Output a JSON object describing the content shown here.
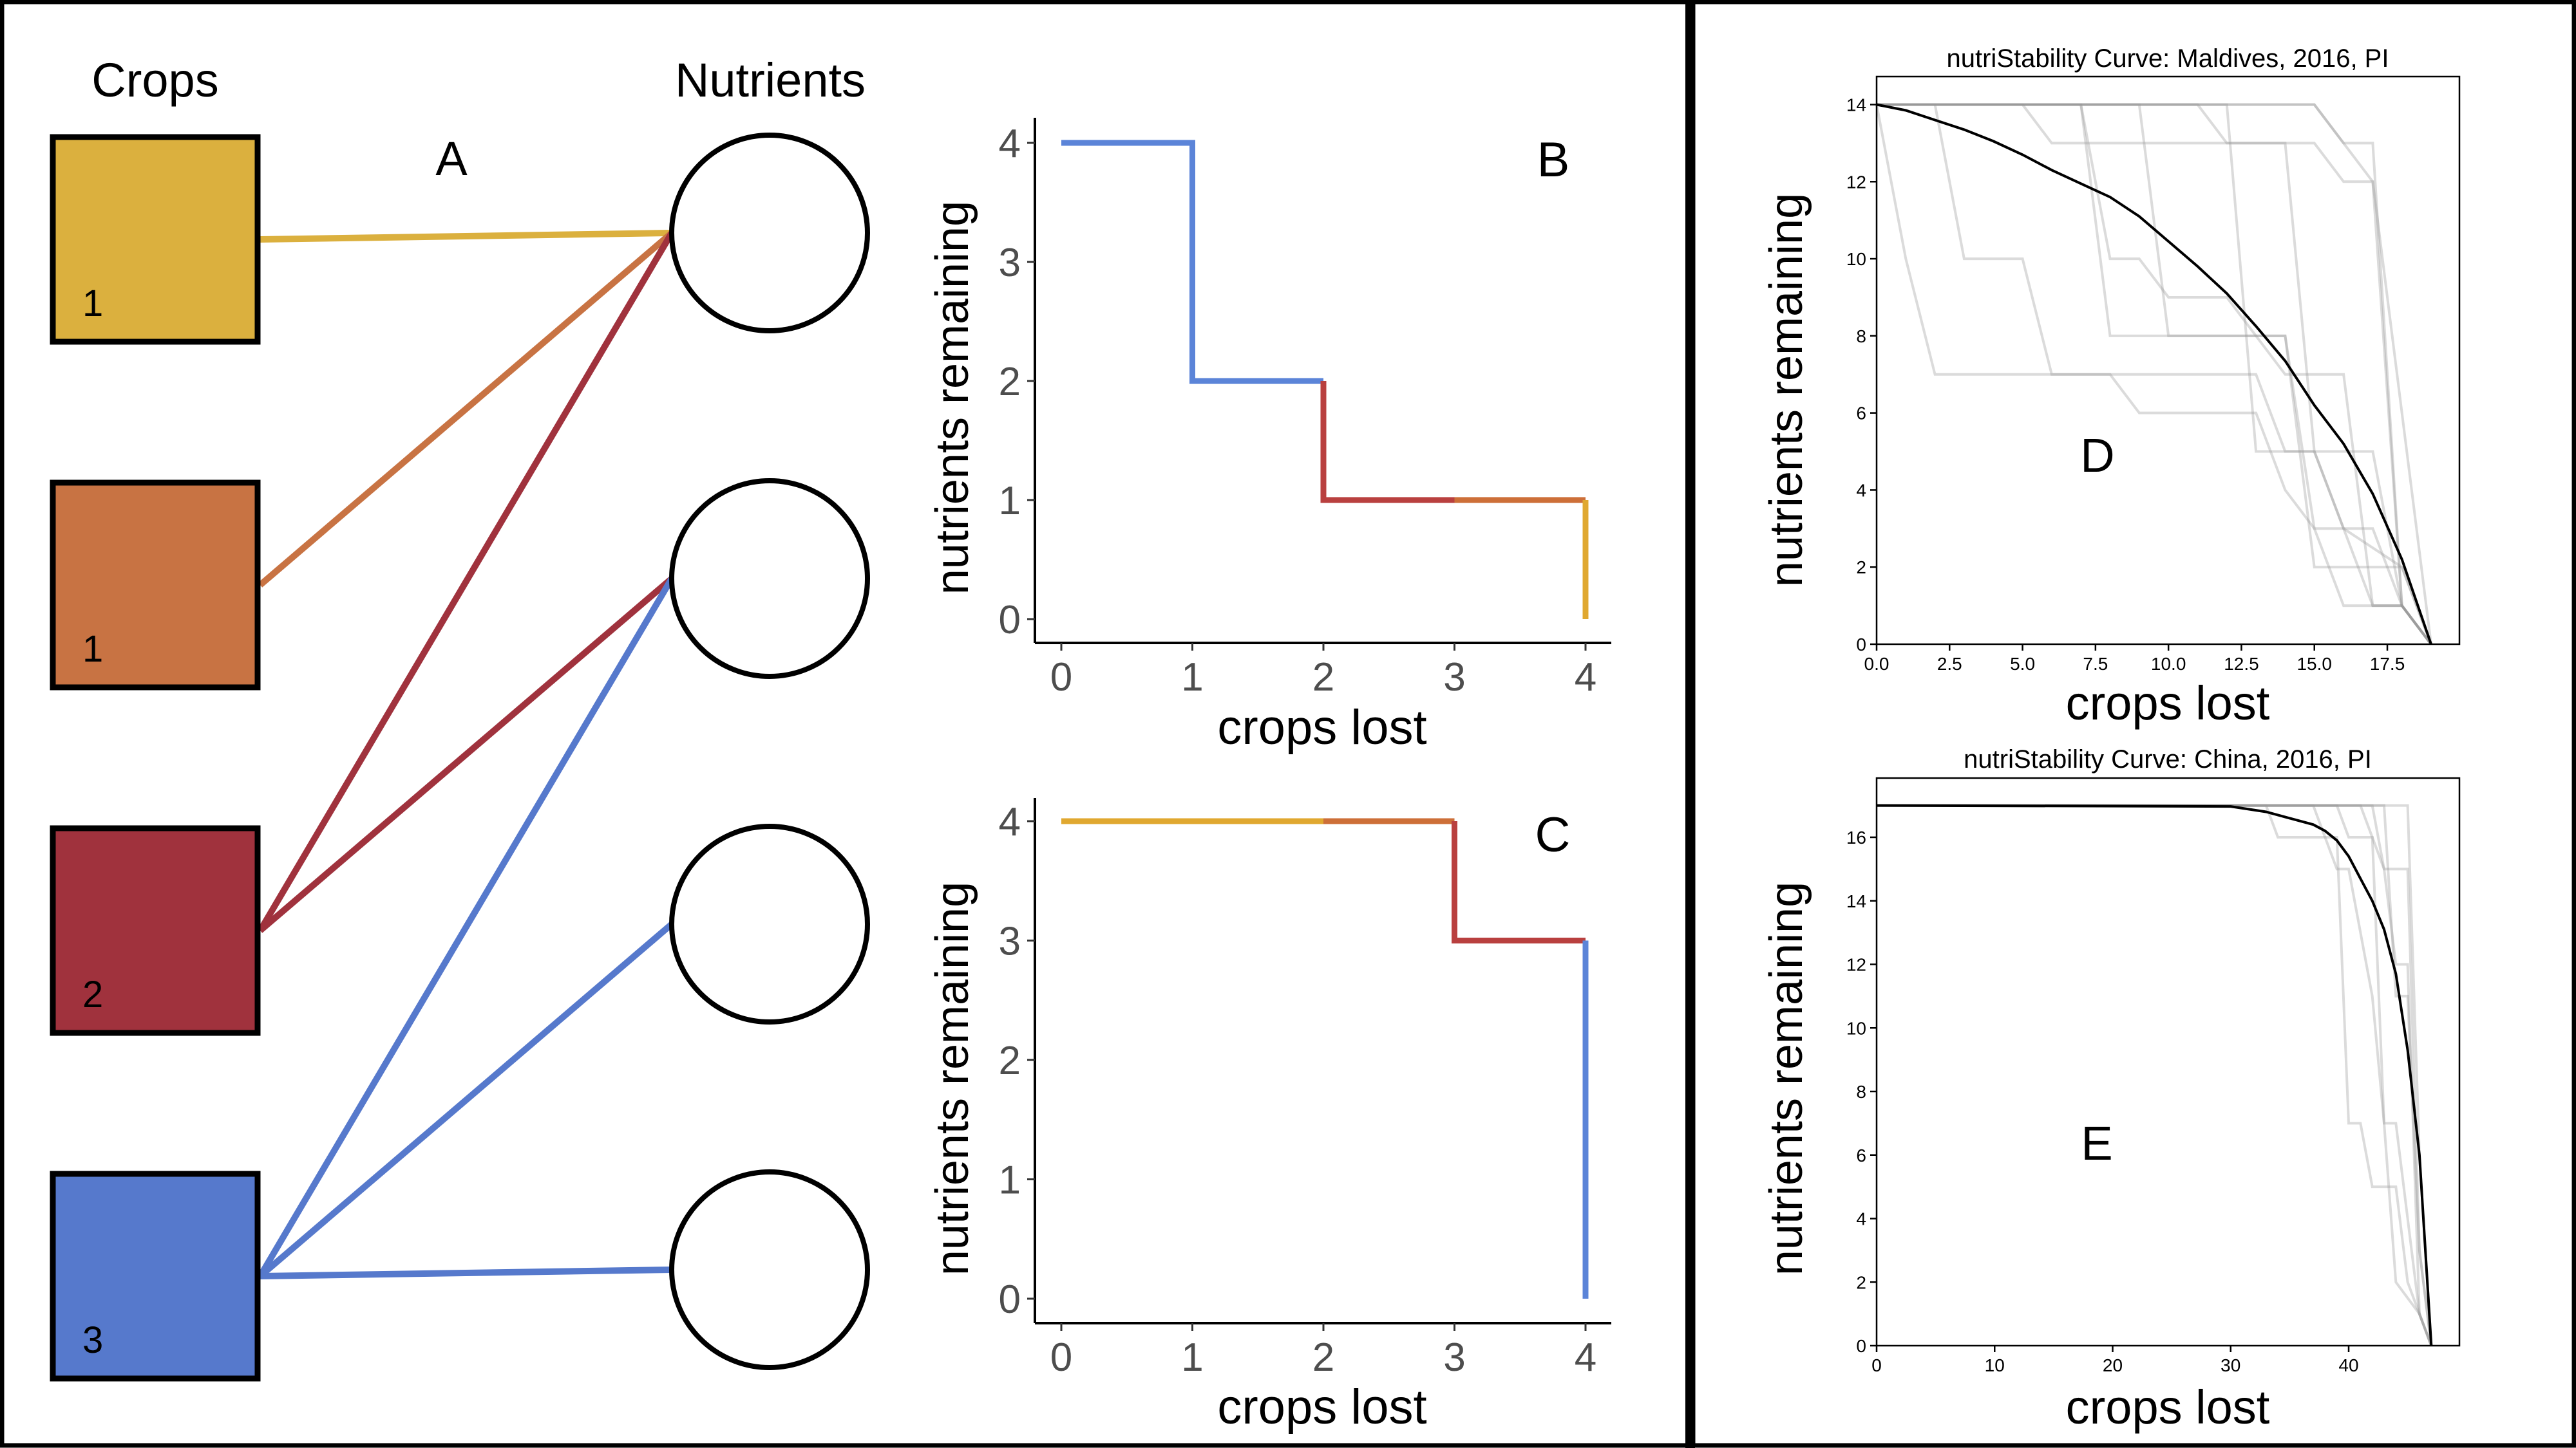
{
  "diagram": {
    "panel_label": "A",
    "crops_heading": "Crops",
    "nutrients_heading": "Nutrients",
    "crops": [
      {
        "label": "1",
        "color": "#DBB03E"
      },
      {
        "label": "1",
        "color": "#C87343"
      },
      {
        "label": "2",
        "color": "#A0323D"
      },
      {
        "label": "3",
        "color": "#5679CC"
      }
    ],
    "nutrient_count": 4,
    "edges": [
      {
        "crop": 0,
        "nutrient": 0
      },
      {
        "crop": 1,
        "nutrient": 0
      },
      {
        "crop": 2,
        "nutrient": 0
      },
      {
        "crop": 2,
        "nutrient": 1
      },
      {
        "crop": 3,
        "nutrient": 1
      },
      {
        "crop": 3,
        "nutrient": 2
      },
      {
        "crop": 3,
        "nutrient": 3
      }
    ]
  },
  "chart_data": [
    {
      "id": "B",
      "type": "line",
      "panel_label": "B",
      "title": "",
      "xlabel": "crops lost",
      "ylabel": "nutrients remaining",
      "xlim": [
        0,
        4
      ],
      "ylim": [
        0,
        4
      ],
      "xticks": [
        "0",
        "1",
        "2",
        "3",
        "4"
      ],
      "yticks": [
        "0",
        "1",
        "2",
        "3",
        "4"
      ],
      "series": [
        {
          "name": "crop 3",
          "color": "#5B84D8",
          "points": [
            [
              0,
              4
            ],
            [
              1,
              4
            ],
            [
              1,
              2
            ],
            [
              2,
              2
            ]
          ]
        },
        {
          "name": "crop 2",
          "color": "#B9403F",
          "points": [
            [
              2,
              2
            ],
            [
              2,
              1
            ],
            [
              3,
              1
            ]
          ]
        },
        {
          "name": "crop 1 (orange)",
          "color": "#CD6F38",
          "points": [
            [
              3,
              1
            ],
            [
              4,
              1
            ]
          ]
        },
        {
          "name": "crop 1 (yellow)",
          "color": "#E0A830",
          "points": [
            [
              4,
              1
            ],
            [
              4,
              0
            ]
          ]
        }
      ]
    },
    {
      "id": "C",
      "type": "line",
      "panel_label": "C",
      "title": "",
      "xlabel": "crops lost",
      "ylabel": "nutrients remaining",
      "xlim": [
        0,
        4
      ],
      "ylim": [
        0,
        4
      ],
      "xticks": [
        "0",
        "1",
        "2",
        "3",
        "4"
      ],
      "yticks": [
        "0",
        "1",
        "2",
        "3",
        "4"
      ],
      "series": [
        {
          "name": "crop 1 (yellow)",
          "color": "#E0A830",
          "points": [
            [
              0,
              4
            ],
            [
              2,
              4
            ]
          ]
        },
        {
          "name": "crop 1 (orange)",
          "color": "#CD6F38",
          "points": [
            [
              2,
              4
            ],
            [
              3,
              4
            ]
          ]
        },
        {
          "name": "crop 2",
          "color": "#B9403F",
          "points": [
            [
              3,
              4
            ],
            [
              3,
              3
            ],
            [
              4,
              3
            ]
          ]
        },
        {
          "name": "crop 3",
          "color": "#5B84D8",
          "points": [
            [
              4,
              3
            ],
            [
              4,
              0
            ]
          ]
        }
      ]
    },
    {
      "id": "D",
      "type": "line",
      "panel_label": "D",
      "title": "nutriStability Curve: Maldives, 2016, PI",
      "xlabel": "crops lost",
      "ylabel": "nutrients remaining",
      "xlim": [
        0,
        19.5
      ],
      "ylim": [
        0,
        14.6
      ],
      "xticks": [
        "0.0",
        "2.5",
        "5.0",
        "7.5",
        "10.0",
        "12.5",
        "15.0",
        "17.5"
      ],
      "xtick_values": [
        0,
        2.5,
        5,
        7.5,
        10,
        12.5,
        15,
        17.5
      ],
      "yticks": [
        "0",
        "2",
        "4",
        "6",
        "8",
        "10",
        "12",
        "14"
      ],
      "ytick_values": [
        0,
        2,
        4,
        6,
        8,
        10,
        12,
        14
      ],
      "mean": {
        "name": "mean",
        "color": "#000000",
        "points": [
          [
            0,
            14
          ],
          [
            1,
            13.85
          ],
          [
            2,
            13.6
          ],
          [
            3,
            13.35
          ],
          [
            4,
            13.05
          ],
          [
            5,
            12.7
          ],
          [
            6,
            12.3
          ],
          [
            7,
            11.95
          ],
          [
            8,
            11.6
          ],
          [
            9,
            11.1
          ],
          [
            10,
            10.45
          ],
          [
            11,
            9.8
          ],
          [
            12,
            9.1
          ],
          [
            13,
            8.25
          ],
          [
            14,
            7.35
          ],
          [
            15,
            6.2
          ],
          [
            16,
            5.2
          ],
          [
            17,
            3.9
          ],
          [
            18,
            2.2
          ],
          [
            19,
            0
          ]
        ]
      },
      "trials": [
        [
          [
            0,
            14
          ],
          [
            1,
            10
          ],
          [
            2,
            7
          ],
          [
            13,
            7
          ],
          [
            14,
            5
          ],
          [
            15,
            5
          ],
          [
            16,
            3
          ],
          [
            17,
            1
          ],
          [
            18,
            1
          ],
          [
            19,
            0
          ]
        ],
        [
          [
            0,
            14
          ],
          [
            2,
            14
          ],
          [
            3,
            10
          ],
          [
            5,
            10
          ],
          [
            6,
            7
          ],
          [
            8,
            7
          ],
          [
            9,
            6
          ],
          [
            13,
            6
          ],
          [
            14,
            4
          ],
          [
            15,
            3
          ],
          [
            17,
            3
          ],
          [
            18,
            1
          ],
          [
            19,
            0
          ]
        ],
        [
          [
            0,
            14
          ],
          [
            5,
            14
          ],
          [
            6,
            13
          ],
          [
            15,
            13
          ],
          [
            16,
            12
          ],
          [
            17,
            12
          ],
          [
            18,
            1
          ],
          [
            19,
            0
          ]
        ],
        [
          [
            0,
            14
          ],
          [
            7,
            14
          ],
          [
            8,
            8
          ],
          [
            14,
            8
          ],
          [
            15,
            2
          ],
          [
            18,
            2
          ],
          [
            19,
            0
          ]
        ],
        [
          [
            0,
            14
          ],
          [
            7,
            14
          ],
          [
            8,
            10
          ],
          [
            9,
            10
          ],
          [
            10,
            9
          ],
          [
            12,
            9
          ],
          [
            13,
            8
          ],
          [
            14,
            7
          ],
          [
            16,
            7
          ],
          [
            17,
            1
          ],
          [
            18,
            1
          ],
          [
            19,
            0
          ]
        ],
        [
          [
            0,
            14
          ],
          [
            9,
            14
          ],
          [
            10,
            8
          ],
          [
            14,
            8
          ],
          [
            15,
            3
          ],
          [
            16,
            1
          ],
          [
            18,
            1
          ],
          [
            19,
            0
          ]
        ],
        [
          [
            0,
            14
          ],
          [
            11,
            14
          ],
          [
            12,
            13
          ],
          [
            14,
            13
          ],
          [
            15,
            5
          ],
          [
            17,
            5
          ],
          [
            18,
            1
          ],
          [
            19,
            0
          ]
        ],
        [
          [
            0,
            14
          ],
          [
            12,
            14
          ],
          [
            13,
            5
          ],
          [
            15,
            5
          ],
          [
            16,
            3
          ],
          [
            18,
            2
          ],
          [
            19,
            0
          ]
        ],
        [
          [
            0,
            14
          ],
          [
            15,
            14
          ],
          [
            16,
            13
          ],
          [
            17,
            13
          ],
          [
            18,
            1
          ],
          [
            19,
            0
          ]
        ],
        [
          [
            0,
            14
          ],
          [
            15,
            14
          ],
          [
            17,
            12
          ],
          [
            19,
            0
          ]
        ]
      ]
    },
    {
      "id": "E",
      "type": "line",
      "panel_label": "E",
      "title": "nutriStability Curve: China, 2016, PI",
      "xlabel": "crops lost",
      "ylabel": "nutrients remaining",
      "xlim": [
        0,
        49.3
      ],
      "ylim": [
        0,
        17.9
      ],
      "xticks": [
        "0",
        "10",
        "20",
        "30",
        "40"
      ],
      "xtick_values": [
        0,
        10,
        20,
        30,
        40
      ],
      "yticks": [
        "0",
        "2",
        "4",
        "6",
        "8",
        "10",
        "12",
        "14",
        "16"
      ],
      "ytick_values": [
        0,
        2,
        4,
        6,
        8,
        10,
        12,
        14,
        16
      ],
      "mean": {
        "name": "mean",
        "color": "#000000",
        "points": [
          [
            0,
            17
          ],
          [
            30,
            16.97
          ],
          [
            33,
            16.8
          ],
          [
            35,
            16.6
          ],
          [
            37,
            16.4
          ],
          [
            38,
            16.2
          ],
          [
            39,
            15.9
          ],
          [
            40,
            15.4
          ],
          [
            41,
            14.7
          ],
          [
            42,
            14.0
          ],
          [
            43,
            13.1
          ],
          [
            44,
            11.7
          ],
          [
            45,
            9.3
          ],
          [
            46,
            6
          ],
          [
            47,
            0
          ]
        ]
      },
      "trials": [
        [
          [
            0,
            17
          ],
          [
            33,
            17
          ],
          [
            34,
            16
          ],
          [
            39,
            16
          ],
          [
            40,
            7
          ],
          [
            41,
            7
          ],
          [
            42,
            5
          ],
          [
            44,
            5
          ],
          [
            45,
            2
          ],
          [
            46,
            1
          ],
          [
            47,
            0
          ]
        ],
        [
          [
            0,
            17
          ],
          [
            37,
            17
          ],
          [
            39,
            15
          ],
          [
            40,
            15
          ],
          [
            42,
            11
          ],
          [
            43,
            7
          ],
          [
            44,
            7
          ],
          [
            45,
            4
          ],
          [
            46,
            1
          ],
          [
            47,
            0
          ]
        ],
        [
          [
            0,
            17
          ],
          [
            39,
            17
          ],
          [
            40,
            16
          ],
          [
            42,
            16
          ],
          [
            43,
            7
          ],
          [
            44,
            2
          ],
          [
            46,
            1
          ],
          [
            47,
            0
          ]
        ],
        [
          [
            0,
            17
          ],
          [
            41,
            17
          ],
          [
            42,
            16
          ],
          [
            43,
            15
          ],
          [
            45,
            15
          ],
          [
            46,
            3
          ],
          [
            47,
            0
          ]
        ],
        [
          [
            0,
            17
          ],
          [
            42,
            17
          ],
          [
            43,
            15
          ],
          [
            44,
            12
          ],
          [
            45,
            12
          ],
          [
            46,
            1
          ],
          [
            47,
            0
          ]
        ],
        [
          [
            0,
            17
          ],
          [
            45,
            17
          ],
          [
            46,
            6
          ],
          [
            47,
            0
          ]
        ],
        [
          [
            0,
            17
          ],
          [
            43,
            17
          ],
          [
            44,
            11
          ],
          [
            45,
            11
          ],
          [
            46,
            3
          ],
          [
            47,
            0
          ]
        ]
      ]
    }
  ]
}
